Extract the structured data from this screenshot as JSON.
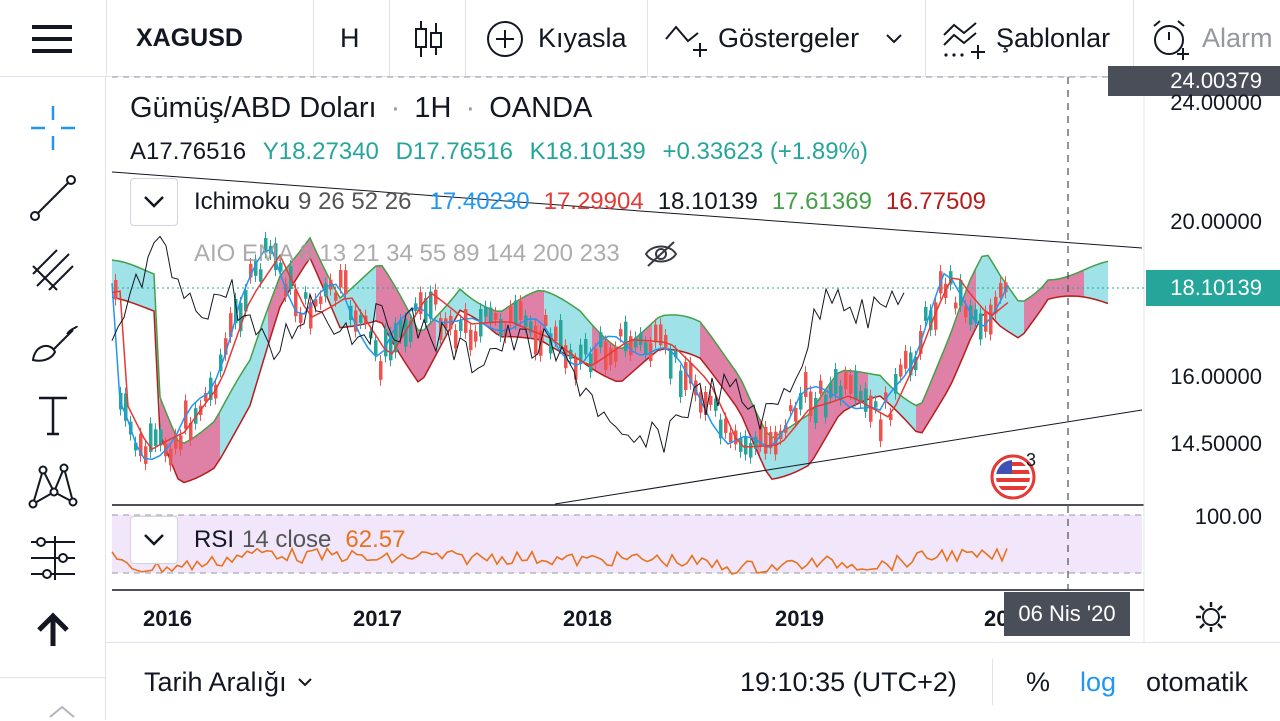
{
  "toolbar": {
    "symbol": "XAGUSD",
    "interval": "H",
    "compare_label": "Kıyasla",
    "indicators_label": "Göstergeler",
    "templates_label": "Şablonlar",
    "alarm_label": "Alarm"
  },
  "legend": {
    "title_name": "Gümüş/ABD Doları",
    "title_interval": "1H",
    "title_source": "OANDA",
    "open": "A17.76516",
    "high": "Y18.27340",
    "low": "D17.76516",
    "close": "K18.10139",
    "change": "+0.33623 (+1.89%)"
  },
  "ichimoku": {
    "name": "Ichimoku",
    "params": "9 26 52 26",
    "v1": "17.40230",
    "v2": "17.29904",
    "v3": "18.10139",
    "v4": "17.61369",
    "v5": "16.77509"
  },
  "ema": {
    "label": "AIO EMA 8 13 21 34 55 89 144 200 233"
  },
  "rsi": {
    "name": "RSI",
    "params": "14 close",
    "value": "62.57"
  },
  "price_axis": {
    "top": "24.00379",
    "p1": "24.00000",
    "p2": "20.00000",
    "current": "18.10139",
    "p3": "16.00000",
    "p4": "14.50000",
    "rsi_top": "100.00"
  },
  "time_axis": {
    "t1": "2016",
    "t2": "2017",
    "t3": "2018",
    "t4": "2019",
    "t5": "20",
    "cursor_date": "06 Nis '20"
  },
  "events": {
    "badge_count": "3"
  },
  "bottom": {
    "date_range": "Tarih Aralığı",
    "clock": "19:10:35 (UTC+2)",
    "percent": "%",
    "log": "log",
    "auto": "otomatik"
  },
  "colors": {
    "up": "#26a69a",
    "down": "#ef5350",
    "kumo_bull": "#7fd8e0",
    "kumo_bear": "#d4558a",
    "rsi_bg": "#f2e6fb",
    "rsi_line": "#e8731e",
    "link": "#2196f3"
  }
}
